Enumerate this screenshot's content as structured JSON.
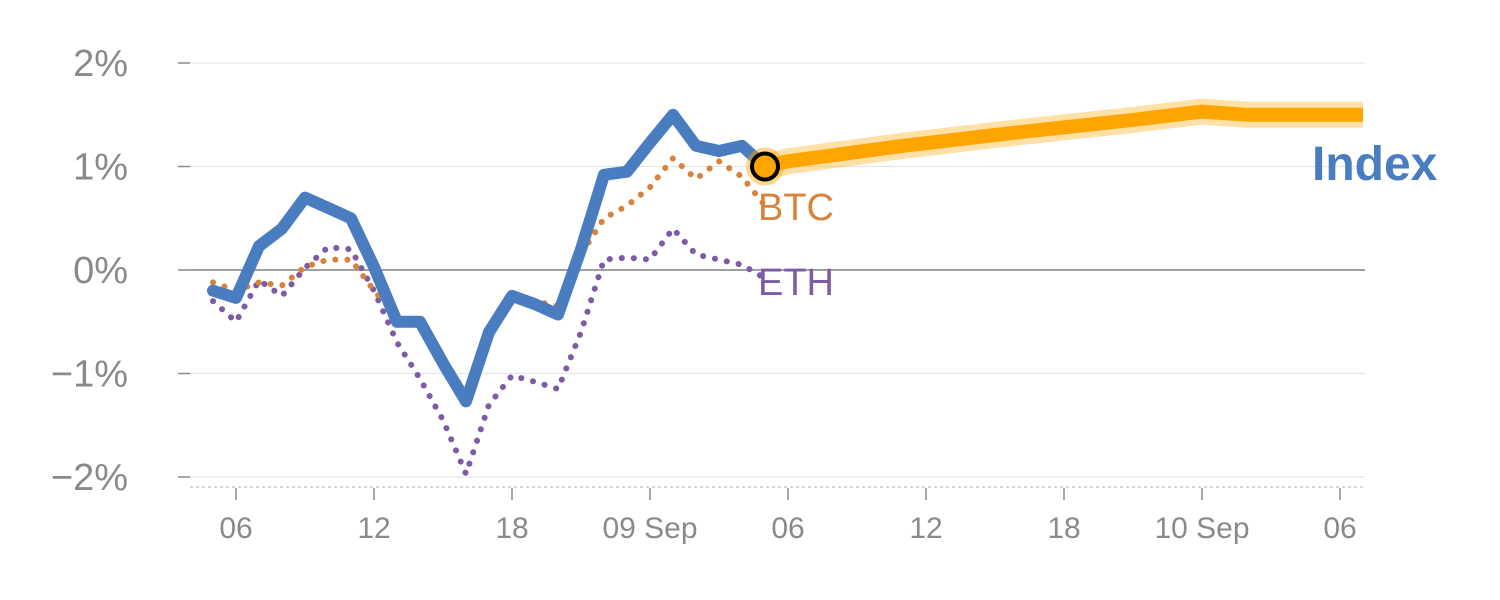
{
  "chart_data": {
    "type": "line",
    "x_ticks": [
      "06",
      "12",
      "18",
      "09 Sep",
      "06",
      "12",
      "18",
      "10 Sep",
      "06"
    ],
    "y_ticks": [
      "2%",
      "1%",
      "0%",
      "−1%",
      "−2%"
    ],
    "y_tick_values": [
      2,
      1,
      0,
      -1,
      -2
    ],
    "ylim": [
      -2.1,
      2.1
    ],
    "x_unit": "hours since 08 Sep 00:00",
    "x_tick_values": [
      6,
      12,
      18,
      24,
      30,
      36,
      42,
      48,
      54
    ],
    "xlim": [
      4,
      55.5
    ],
    "series": [
      {
        "name": "Index",
        "color": "#4a7dbf",
        "style": "solid",
        "x": [
          5,
          6,
          7,
          8,
          9,
          10,
          11,
          12,
          13,
          14,
          15,
          16,
          17,
          18,
          19,
          20,
          21,
          22,
          23,
          24,
          25,
          26,
          27,
          28,
          29
        ],
        "y": [
          -0.2,
          -0.27,
          0.23,
          0.4,
          0.7,
          0.6,
          0.5,
          0.03,
          -0.5,
          -0.5,
          -0.9,
          -1.27,
          -0.6,
          -0.25,
          -0.33,
          -0.43,
          0.2,
          0.92,
          0.95,
          1.23,
          1.5,
          1.2,
          1.15,
          1.2,
          1.0
        ]
      },
      {
        "name": "BTC",
        "color": "#d9823b",
        "style": "dotted",
        "x": [
          5,
          6,
          7,
          8,
          9,
          10,
          11,
          12,
          13,
          14,
          15,
          16,
          17,
          18,
          19,
          20,
          21,
          22,
          23,
          24,
          25,
          26,
          27,
          28,
          29
        ],
        "y": [
          -0.12,
          -0.2,
          -0.12,
          -0.15,
          0.03,
          0.1,
          0.1,
          -0.2,
          -0.45,
          -0.55,
          -0.85,
          -1.2,
          -0.55,
          -0.25,
          -0.3,
          -0.35,
          0.15,
          0.5,
          0.62,
          0.8,
          1.08,
          0.88,
          1.05,
          0.9,
          0.62
        ]
      },
      {
        "name": "ETH",
        "color": "#7e5ba6",
        "style": "dotted",
        "x": [
          5,
          6,
          7,
          8,
          9,
          10,
          11,
          12,
          13,
          14,
          15,
          16,
          17,
          18,
          19,
          20,
          21,
          22,
          23,
          24,
          25,
          26,
          27,
          28,
          29
        ],
        "y": [
          -0.3,
          -0.5,
          -0.1,
          -0.25,
          0.02,
          0.22,
          0.2,
          -0.2,
          -0.7,
          -1.05,
          -1.45,
          -1.97,
          -1.3,
          -1.02,
          -1.08,
          -1.15,
          -0.6,
          0.1,
          0.12,
          0.1,
          0.4,
          0.15,
          0.1,
          0.05,
          -0.08
        ]
      }
    ],
    "forecast": {
      "color": "#ffa500",
      "x": [
        29,
        30,
        35,
        40,
        45,
        48,
        50,
        55
      ],
      "y": [
        1.0,
        1.05,
        1.2,
        1.33,
        1.45,
        1.53,
        1.5,
        1.5
      ]
    },
    "marker": {
      "x": 29,
      "y": 1.0,
      "fill": "#ffa500"
    },
    "labels": {
      "index": "Index",
      "btc": "BTC",
      "eth": "ETH"
    },
    "colors": {
      "grid": "#e6e6e6",
      "zero_line": "#808080",
      "tick_text": "#8a8a8a",
      "axis_dotted": "#cccccc"
    }
  }
}
